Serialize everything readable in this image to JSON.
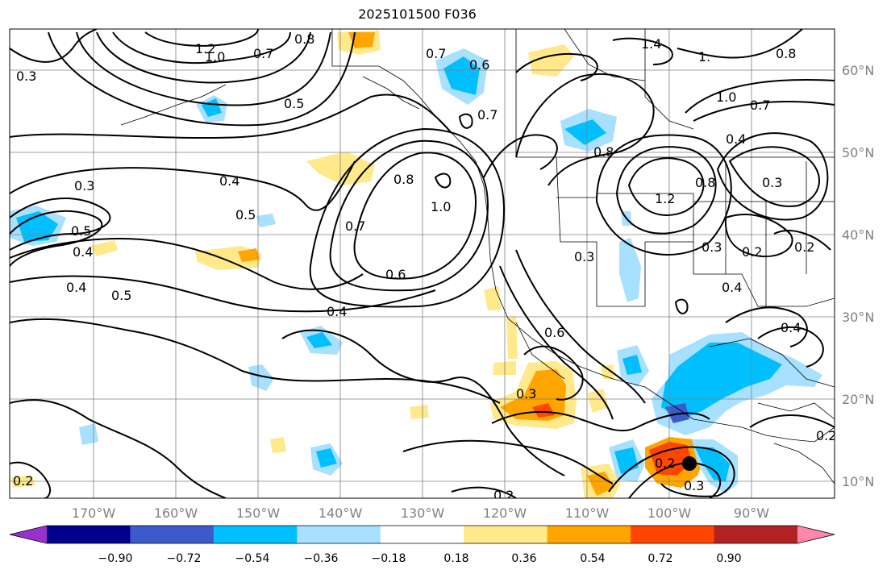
{
  "title": "2025101500 F036",
  "lat_labels": [
    "60°N",
    "50°N",
    "40°N",
    "30°N",
    "20°N",
    "10°N"
  ],
  "lon_labels": [
    "170°W",
    "160°W",
    "150°W",
    "140°W",
    "130°W",
    "120°W",
    "110°W",
    "100°W",
    "90°W"
  ],
  "colorbar": {
    "tick_labels": [
      "−0.90",
      "−0.72",
      "−0.54",
      "−0.36",
      "−0.18",
      "0.18",
      "0.36",
      "0.54",
      "0.72",
      "0.90"
    ],
    "colors": [
      "#9932cc",
      "#00008b",
      "#3c5ac8",
      "#00bfff",
      "#a8e0ff",
      "#ffffff",
      "#ffe98a",
      "#ffa500",
      "#ff4500",
      "#b22222",
      "#ff88aa"
    ]
  },
  "contour_labels": [
    {
      "text": "1.2"
    },
    {
      "text": "1.0"
    },
    {
      "text": "0.8"
    },
    {
      "text": "0.7"
    },
    {
      "text": "0.5"
    },
    {
      "text": "0.7"
    },
    {
      "text": "0.6"
    },
    {
      "text": "0.7"
    },
    {
      "text": "1.4"
    },
    {
      "text": "1."
    },
    {
      "text": "0.8"
    },
    {
      "text": "1.0"
    },
    {
      "text": "0.7"
    },
    {
      "text": "0.8"
    },
    {
      "text": "0.4"
    },
    {
      "text": "0.3"
    },
    {
      "text": "0.3"
    },
    {
      "text": "0.4"
    },
    {
      "text": "0.5"
    },
    {
      "text": "0.8"
    },
    {
      "text": "1.0"
    },
    {
      "text": "0.7"
    },
    {
      "text": "0.6"
    },
    {
      "text": "0.4"
    },
    {
      "text": "0.5"
    },
    {
      "text": "0.4"
    },
    {
      "text": "0.3"
    },
    {
      "text": "1.2"
    },
    {
      "text": "0.8"
    },
    {
      "text": "0.3"
    },
    {
      "text": "0.4"
    },
    {
      "text": "0.4"
    },
    {
      "text": "0.3"
    },
    {
      "text": "0.2"
    },
    {
      "text": "0.3"
    },
    {
      "text": "0.2"
    },
    {
      "text": "0.2"
    },
    {
      "text": "0.2"
    },
    {
      "text": "0.6"
    },
    {
      "text": "0.2"
    },
    {
      "text": "0.3"
    },
    {
      "text": "0.2"
    },
    {
      "text": "0.5"
    },
    {
      "text": "0.4"
    }
  ],
  "storm_marker": "storm-center"
}
